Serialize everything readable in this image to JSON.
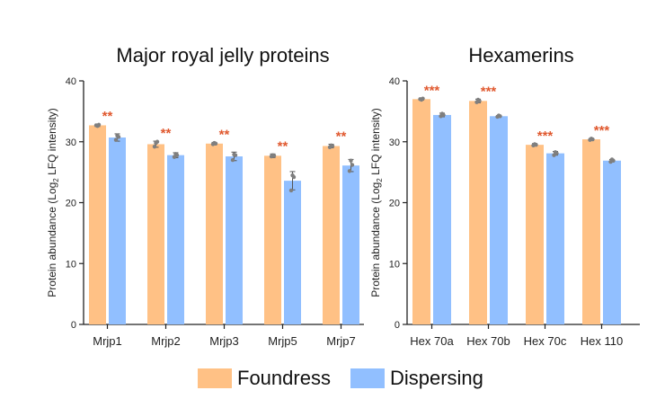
{
  "colors": {
    "foundress": "#FFC185",
    "dispersing": "#91BFFF",
    "star": "#E0582E",
    "axis": "#222222",
    "point": "#7f7f7f"
  },
  "legend": {
    "foundress": "Foundress",
    "dispersing": "Dispersing"
  },
  "chart_data": [
    {
      "type": "bar",
      "title": "Major royal jelly proteins",
      "ylabel_pre": "Protein abundance (Log",
      "ylabel_sub": "2",
      "ylabel_post": " LFQ intensity)",
      "ylim": [
        0,
        40
      ],
      "yticks": [
        0,
        10,
        20,
        30,
        40
      ],
      "categories": [
        "Mrjp1",
        "Mrjp2",
        "Mrjp3",
        "Mrjp5",
        "Mrjp7"
      ],
      "significance": [
        "**",
        "**",
        "**",
        "**",
        "**"
      ],
      "series": [
        {
          "name": "Foundress",
          "values": [
            32.7,
            29.6,
            29.7,
            27.7,
            29.3
          ],
          "err": [
            0.2,
            0.5,
            0.2,
            0.3,
            0.3
          ],
          "points": [
            [
              32.7,
              32.6,
              32.8
            ],
            [
              29.2,
              29.8,
              30.0
            ],
            [
              29.6,
              29.8,
              29.7
            ],
            [
              27.6,
              27.8,
              27.7
            ],
            [
              29.1,
              29.4,
              29.3
            ]
          ]
        },
        {
          "name": "Dispersing",
          "values": [
            30.7,
            27.8,
            27.6,
            23.6,
            26.1
          ],
          "err": [
            0.6,
            0.4,
            0.7,
            1.5,
            1.0
          ],
          "points": [
            [
              30.3,
              31.0,
              30.8
            ],
            [
              27.5,
              28.0,
              27.8
            ],
            [
              27.0,
              27.9,
              27.8
            ],
            [
              22.0,
              24.5,
              24.2
            ],
            [
              25.2,
              26.9,
              26.2
            ]
          ]
        }
      ]
    },
    {
      "type": "bar",
      "title": "Hexamerins",
      "ylabel_pre": "Protein abundance (Log",
      "ylabel_sub": "2",
      "ylabel_post": " LFQ intensity)",
      "ylim": [
        0,
        40
      ],
      "yticks": [
        0,
        10,
        20,
        30,
        40
      ],
      "categories": [
        "Hex 70a",
        "Hex 70b",
        "Hex 70c",
        "Hex 110"
      ],
      "significance": [
        "***",
        "***",
        "***",
        "***"
      ],
      "series": [
        {
          "name": "Foundress",
          "values": [
            37.0,
            36.7,
            29.5,
            30.4
          ],
          "err": [
            0.15,
            0.3,
            0.2,
            0.15
          ],
          "points": [
            [
              37.0,
              36.9,
              37.1
            ],
            [
              36.5,
              36.9,
              36.7
            ],
            [
              29.4,
              29.6,
              29.5
            ],
            [
              30.3,
              30.5,
              30.4
            ]
          ]
        },
        {
          "name": "Dispersing",
          "values": [
            34.4,
            34.2,
            28.1,
            26.9
          ],
          "err": [
            0.3,
            0.1,
            0.3,
            0.2
          ],
          "points": [
            [
              34.2,
              34.6,
              34.4
            ],
            [
              34.1,
              34.3,
              34.2
            ],
            [
              27.8,
              28.3,
              28.1
            ],
            [
              26.7,
              27.1,
              26.9
            ]
          ]
        }
      ]
    }
  ]
}
